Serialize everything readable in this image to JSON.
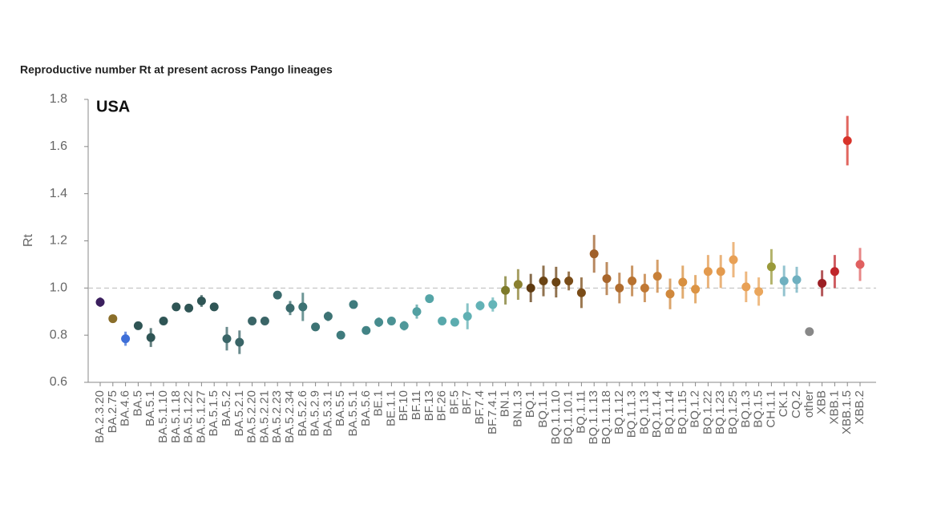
{
  "chart_data": {
    "type": "errorbar",
    "title": "Reproductive number Rt at present across Pango lineages",
    "annotation": "USA",
    "y_label": "Rt",
    "categories": [
      "BA.2.3.20",
      "BA.2.75",
      "BA.4.6",
      "BA.5",
      "BA.5.1",
      "BA.5.1.10",
      "BA.5.1.18",
      "BA.5.1.22",
      "BA.5.1.27",
      "BA.5.1.5",
      "BA.5.2",
      "BA.5.2.1",
      "BA.5.2.20",
      "BA.5.2.21",
      "BA.5.2.23",
      "BA.5.2.34",
      "BA.5.2.6",
      "BA.5.2.9",
      "BA.5.3.1",
      "BA.5.5",
      "BA.5.5.1",
      "BA.5.6",
      "BE.1",
      "BE.1.1",
      "BF.10",
      "BF.11",
      "BF.13",
      "BF.26",
      "BF.5",
      "BF.7",
      "BF.7.4",
      "BF.7.4.1",
      "BN.1",
      "BN.1.3",
      "BQ.1",
      "BQ.1.1",
      "BQ.1.1.10",
      "BQ.1.10.1",
      "BQ.1.11",
      "BQ.1.1.13",
      "BQ.1.1.18",
      "BQ.1.12",
      "BQ.1.1.3",
      "BQ.1.13",
      "BQ.1.1.4",
      "BQ.1.14",
      "BQ.1.15",
      "BQ.1.2",
      "BQ.1.22",
      "BQ.1.23",
      "BQ.1.25",
      "BQ.1.3",
      "BQ.1.5",
      "CH.1.1",
      "CK.1",
      "CQ.2",
      "other",
      "XBB",
      "XBB.1",
      "XBB.1.5",
      "XBB.2"
    ],
    "values": [
      0.94,
      0.87,
      0.785,
      0.84,
      0.79,
      0.86,
      0.92,
      0.915,
      0.945,
      0.92,
      0.785,
      0.77,
      0.86,
      0.86,
      0.97,
      0.915,
      0.92,
      0.835,
      0.88,
      0.8,
      0.93,
      0.82,
      0.855,
      0.86,
      0.84,
      0.9,
      0.955,
      0.86,
      0.855,
      0.88,
      0.925,
      0.93,
      0.99,
      1.015,
      1.0,
      1.03,
      1.025,
      1.03,
      0.98,
      1.145,
      1.04,
      1.0,
      1.03,
      1.0,
      1.05,
      0.975,
      1.025,
      0.995,
      1.07,
      1.07,
      1.12,
      1.005,
      0.985,
      1.09,
      1.03,
      1.035,
      0.815,
      1.02,
      1.07,
      1.625,
      1.1
    ],
    "errors": [
      0.02,
      0.015,
      0.03,
      0.015,
      0.04,
      0.015,
      0.015,
      0.015,
      0.025,
      0.015,
      0.05,
      0.05,
      0.015,
      0.015,
      0.015,
      0.03,
      0.06,
      0.015,
      0.02,
      0.015,
      0.015,
      0.015,
      0.02,
      0.015,
      0.02,
      0.03,
      0.015,
      0.015,
      0.015,
      0.055,
      0.02,
      0.03,
      0.06,
      0.065,
      0.06,
      0.065,
      0.065,
      0.04,
      0.065,
      0.08,
      0.07,
      0.065,
      0.065,
      0.06,
      0.07,
      0.065,
      0.07,
      0.06,
      0.07,
      0.07,
      0.075,
      0.065,
      0.06,
      0.075,
      0.065,
      0.055,
      0,
      0.055,
      0.07,
      0.105,
      0.07
    ],
    "colors": [
      "#3b1f5e",
      "#8a6e2a",
      "#3e6fd8",
      "#2f5555",
      "#2f5555",
      "#2f5555",
      "#2f5555",
      "#2f5555",
      "#2f5555",
      "#2f5555",
      "#3a6567",
      "#3a6567",
      "#3a6567",
      "#3a6567",
      "#3a6a6c",
      "#3a6a6c",
      "#3d7374",
      "#3d7374",
      "#3d7374",
      "#3f7b7d",
      "#3f7b7d",
      "#428385",
      "#478c8e",
      "#4b9294",
      "#4f989a",
      "#52a0a2",
      "#55a5a7",
      "#58a8ab",
      "#5cacaf",
      "#60b0b3",
      "#62b2b6",
      "#65b5b8",
      "#7d7a2a",
      "#8a8030",
      "#5e3a10",
      "#6b4414",
      "#6b4414",
      "#7a4c18",
      "#7a4c18",
      "#a0602a",
      "#a8662c",
      "#b06c2e",
      "#b87230",
      "#c07834",
      "#c88038",
      "#d0883c",
      "#d89040",
      "#dc9444",
      "#e39a4e",
      "#e39a4e",
      "#e8a055",
      "#e8a055",
      "#eaa65c",
      "#9a9a3a",
      "#6fb0c0",
      "#6fb0c0",
      "#888888",
      "#9c1f24",
      "#c0262b",
      "#d8332a",
      "#e06060"
    ],
    "ylim": [
      0.6,
      1.8
    ],
    "yticks": [
      {
        "value": 0.6,
        "label": "0.6"
      },
      {
        "value": 0.8,
        "label": "0.8"
      },
      {
        "value": 1.0,
        "label": "1.0"
      },
      {
        "value": 1.2,
        "label": "1.2"
      },
      {
        "value": 1.4,
        "label": "1.4"
      },
      {
        "value": 1.6,
        "label": "1.6"
      },
      {
        "value": 1.8,
        "label": "1.8"
      }
    ],
    "reference_line": 1
  }
}
